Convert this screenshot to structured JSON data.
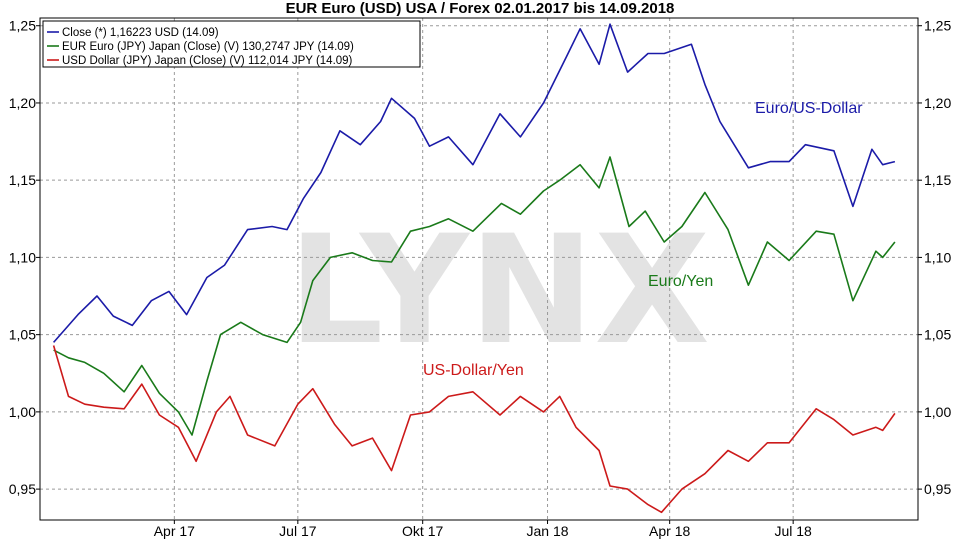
{
  "title": "EUR Euro (USD) USA / Forex 02.01.2017 bis 14.09.2018",
  "watermark": "LYNX",
  "chart_data": {
    "type": "line",
    "title": "EUR Euro (USD) USA / Forex 02.01.2017 bis 14.09.2018",
    "x_tick_labels": [
      "Apr 17",
      "Jul 17",
      "Okt 17",
      "Jan 18",
      "Apr 18",
      "Jul 18"
    ],
    "y_tick_labels": [
      "1,25",
      "1,20",
      "1,15",
      "1,10",
      "1,05",
      "1,00",
      "0,95"
    ],
    "ylim": [
      0.93,
      1.255
    ],
    "grid": true,
    "legend_position": "top-left",
    "legend": [
      "Close (*) 1,16223 USD (14.09)",
      "EUR Euro (JPY) Japan (Close) (V) 130,2747 JPY (14.09)",
      "USD Dollar (JPY) Japan (Close) (V) 112,014 JPY (14.09)"
    ],
    "series": [
      {
        "label": "Euro/US-Dollar",
        "color": "#1b1ba8",
        "values": [
          [
            "2017-01-02",
            1.045
          ],
          [
            "2017-01-20",
            1.063
          ],
          [
            "2017-02-03",
            1.075
          ],
          [
            "2017-02-15",
            1.062
          ],
          [
            "2017-03-01",
            1.056
          ],
          [
            "2017-03-15",
            1.072
          ],
          [
            "2017-03-28",
            1.078
          ],
          [
            "2017-04-10",
            1.063
          ],
          [
            "2017-04-25",
            1.087
          ],
          [
            "2017-05-08",
            1.095
          ],
          [
            "2017-05-25",
            1.118
          ],
          [
            "2017-06-12",
            1.12
          ],
          [
            "2017-06-23",
            1.118
          ],
          [
            "2017-07-05",
            1.138
          ],
          [
            "2017-07-18",
            1.155
          ],
          [
            "2017-08-01",
            1.182
          ],
          [
            "2017-08-16",
            1.173
          ],
          [
            "2017-08-31",
            1.188
          ],
          [
            "2017-09-08",
            1.203
          ],
          [
            "2017-09-25",
            1.19
          ],
          [
            "2017-10-06",
            1.172
          ],
          [
            "2017-10-20",
            1.178
          ],
          [
            "2017-11-07",
            1.16
          ],
          [
            "2017-11-27",
            1.193
          ],
          [
            "2017-12-12",
            1.178
          ],
          [
            "2017-12-29",
            1.2
          ],
          [
            "2018-01-15",
            1.23
          ],
          [
            "2018-01-25",
            1.248
          ],
          [
            "2018-02-08",
            1.225
          ],
          [
            "2018-02-16",
            1.251
          ],
          [
            "2018-03-01",
            1.22
          ],
          [
            "2018-03-16",
            1.232
          ],
          [
            "2018-03-28",
            1.232
          ],
          [
            "2018-04-17",
            1.238
          ],
          [
            "2018-04-27",
            1.212
          ],
          [
            "2018-05-08",
            1.188
          ],
          [
            "2018-05-29",
            1.158
          ],
          [
            "2018-06-14",
            1.162
          ],
          [
            "2018-06-28",
            1.162
          ],
          [
            "2018-07-10",
            1.173
          ],
          [
            "2018-07-31",
            1.169
          ],
          [
            "2018-08-14",
            1.133
          ],
          [
            "2018-08-28",
            1.17
          ],
          [
            "2018-09-05",
            1.16
          ],
          [
            "2018-09-14",
            1.162
          ]
        ]
      },
      {
        "label": "Euro/Yen",
        "color": "#1a7a1a",
        "values": [
          [
            "2017-01-02",
            1.04
          ],
          [
            "2017-01-13",
            1.035
          ],
          [
            "2017-01-25",
            1.032
          ],
          [
            "2017-02-08",
            1.025
          ],
          [
            "2017-02-23",
            1.013
          ],
          [
            "2017-03-08",
            1.03
          ],
          [
            "2017-03-21",
            1.012
          ],
          [
            "2017-04-04",
            1.0
          ],
          [
            "2017-04-14",
            0.985
          ],
          [
            "2017-04-25",
            1.02
          ],
          [
            "2017-05-05",
            1.05
          ],
          [
            "2017-05-20",
            1.058
          ],
          [
            "2017-06-05",
            1.05
          ],
          [
            "2017-06-23",
            1.045
          ],
          [
            "2017-07-03",
            1.058
          ],
          [
            "2017-07-12",
            1.085
          ],
          [
            "2017-07-25",
            1.1
          ],
          [
            "2017-08-10",
            1.103
          ],
          [
            "2017-08-25",
            1.098
          ],
          [
            "2017-09-08",
            1.097
          ],
          [
            "2017-09-22",
            1.117
          ],
          [
            "2017-10-06",
            1.12
          ],
          [
            "2017-10-20",
            1.125
          ],
          [
            "2017-11-07",
            1.117
          ],
          [
            "2017-11-28",
            1.135
          ],
          [
            "2017-12-12",
            1.128
          ],
          [
            "2017-12-29",
            1.143
          ],
          [
            "2018-01-10",
            1.15
          ],
          [
            "2018-01-25",
            1.16
          ],
          [
            "2018-02-08",
            1.145
          ],
          [
            "2018-02-16",
            1.165
          ],
          [
            "2018-03-02",
            1.12
          ],
          [
            "2018-03-14",
            1.13
          ],
          [
            "2018-03-28",
            1.11
          ],
          [
            "2018-04-10",
            1.12
          ],
          [
            "2018-04-27",
            1.142
          ],
          [
            "2018-05-14",
            1.118
          ],
          [
            "2018-05-29",
            1.082
          ],
          [
            "2018-06-12",
            1.11
          ],
          [
            "2018-06-28",
            1.098
          ],
          [
            "2018-07-18",
            1.117
          ],
          [
            "2018-07-31",
            1.115
          ],
          [
            "2018-08-14",
            1.072
          ],
          [
            "2018-08-31",
            1.104
          ],
          [
            "2018-09-05",
            1.1
          ],
          [
            "2018-09-14",
            1.11
          ]
        ]
      },
      {
        "label": "US-Dollar/Yen",
        "color": "#cc1a1a",
        "values": [
          [
            "2017-01-02",
            1.043
          ],
          [
            "2017-01-13",
            1.01
          ],
          [
            "2017-01-25",
            1.005
          ],
          [
            "2017-02-08",
            1.003
          ],
          [
            "2017-02-23",
            1.002
          ],
          [
            "2017-03-08",
            1.018
          ],
          [
            "2017-03-21",
            0.998
          ],
          [
            "2017-04-04",
            0.99
          ],
          [
            "2017-04-17",
            0.968
          ],
          [
            "2017-05-02",
            1.0
          ],
          [
            "2017-05-12",
            1.01
          ],
          [
            "2017-05-25",
            0.985
          ],
          [
            "2017-06-14",
            0.978
          ],
          [
            "2017-07-01",
            1.005
          ],
          [
            "2017-07-12",
            1.015
          ],
          [
            "2017-07-28",
            0.992
          ],
          [
            "2017-08-10",
            0.978
          ],
          [
            "2017-08-25",
            0.983
          ],
          [
            "2017-09-08",
            0.962
          ],
          [
            "2017-09-22",
            0.998
          ],
          [
            "2017-10-06",
            1.0
          ],
          [
            "2017-10-20",
            1.01
          ],
          [
            "2017-11-07",
            1.013
          ],
          [
            "2017-11-27",
            0.998
          ],
          [
            "2017-12-12",
            1.01
          ],
          [
            "2017-12-29",
            1.0
          ],
          [
            "2018-01-10",
            1.01
          ],
          [
            "2018-01-22",
            0.99
          ],
          [
            "2018-02-08",
            0.975
          ],
          [
            "2018-02-16",
            0.952
          ],
          [
            "2018-03-01",
            0.95
          ],
          [
            "2018-03-16",
            0.94
          ],
          [
            "2018-03-26",
            0.935
          ],
          [
            "2018-04-10",
            0.95
          ],
          [
            "2018-04-27",
            0.96
          ],
          [
            "2018-05-14",
            0.975
          ],
          [
            "2018-05-29",
            0.968
          ],
          [
            "2018-06-12",
            0.98
          ],
          [
            "2018-06-28",
            0.98
          ],
          [
            "2018-07-18",
            1.002
          ],
          [
            "2018-07-31",
            0.995
          ],
          [
            "2018-08-14",
            0.985
          ],
          [
            "2018-08-31",
            0.99
          ],
          [
            "2018-09-05",
            0.988
          ],
          [
            "2018-09-14",
            0.999
          ]
        ]
      }
    ]
  }
}
